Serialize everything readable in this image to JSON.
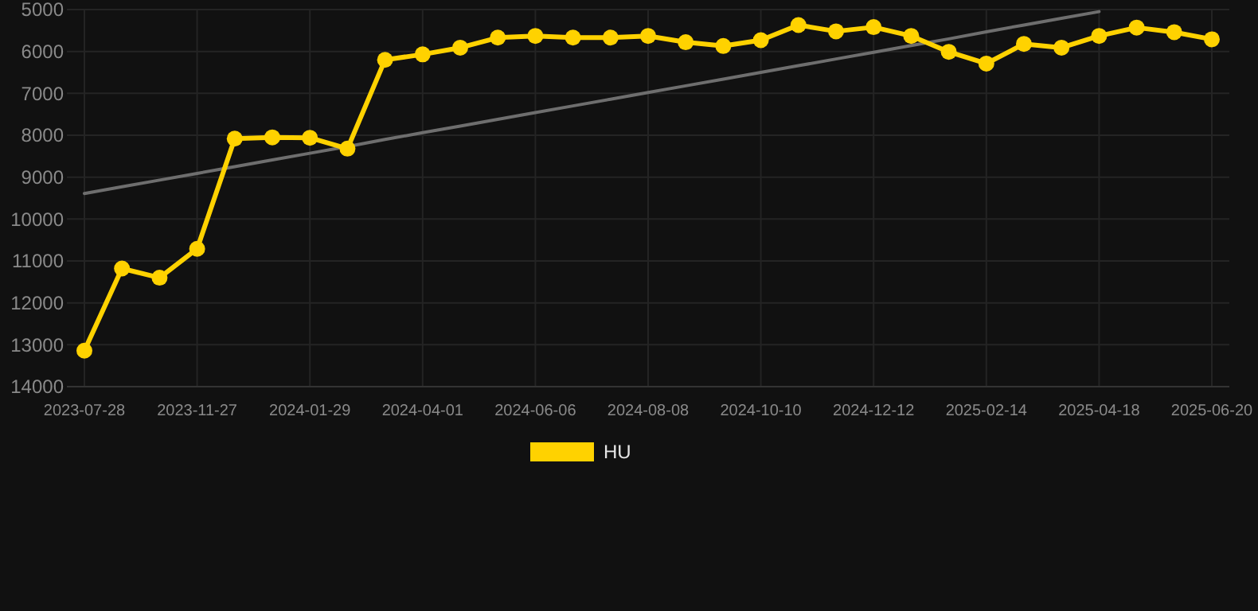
{
  "chart_data": {
    "type": "line",
    "categories": [
      "2023-07-28",
      null,
      null,
      "2023-11-27",
      null,
      null,
      "2024-01-29",
      null,
      null,
      "2024-04-01",
      null,
      null,
      "2024-06-06",
      null,
      null,
      "2024-08-08",
      null,
      null,
      "2024-10-10",
      null,
      null,
      "2024-12-12",
      null,
      null,
      "2025-02-14",
      null,
      null,
      "2025-04-18",
      null,
      null,
      "2025-06-20"
    ],
    "series": [
      {
        "name": "HU",
        "color": "#ffd200",
        "marker": "circle",
        "values": [
          13140,
          11180,
          11400,
          10710,
          8080,
          8050,
          8060,
          8320,
          6200,
          6070,
          5910,
          5670,
          5630,
          5670,
          5670,
          5630,
          5780,
          5870,
          5730,
          5370,
          5520,
          5420,
          5630,
          6010,
          6290,
          5820,
          5910,
          5630,
          5430,
          5540,
          5710
        ]
      },
      {
        "type": "line",
        "color": "#6e6e6e",
        "marker": "none",
        "values": [
          9390,
          9230,
          9070,
          8910,
          8750,
          8590,
          8430,
          8270,
          8100,
          7940,
          7780,
          7620,
          7460,
          7300,
          7140,
          6980,
          6820,
          6660,
          6500,
          6340,
          6180,
          6020,
          5860,
          5700,
          5530,
          5370,
          5210,
          5050,
          null,
          null,
          null
        ]
      }
    ],
    "ylim": [
      14000,
      5000
    ],
    "yticks": [
      5000,
      6000,
      7000,
      8000,
      9000,
      10000,
      11000,
      12000,
      13000,
      14000
    ],
    "grid": true,
    "legend": "bottom"
  }
}
